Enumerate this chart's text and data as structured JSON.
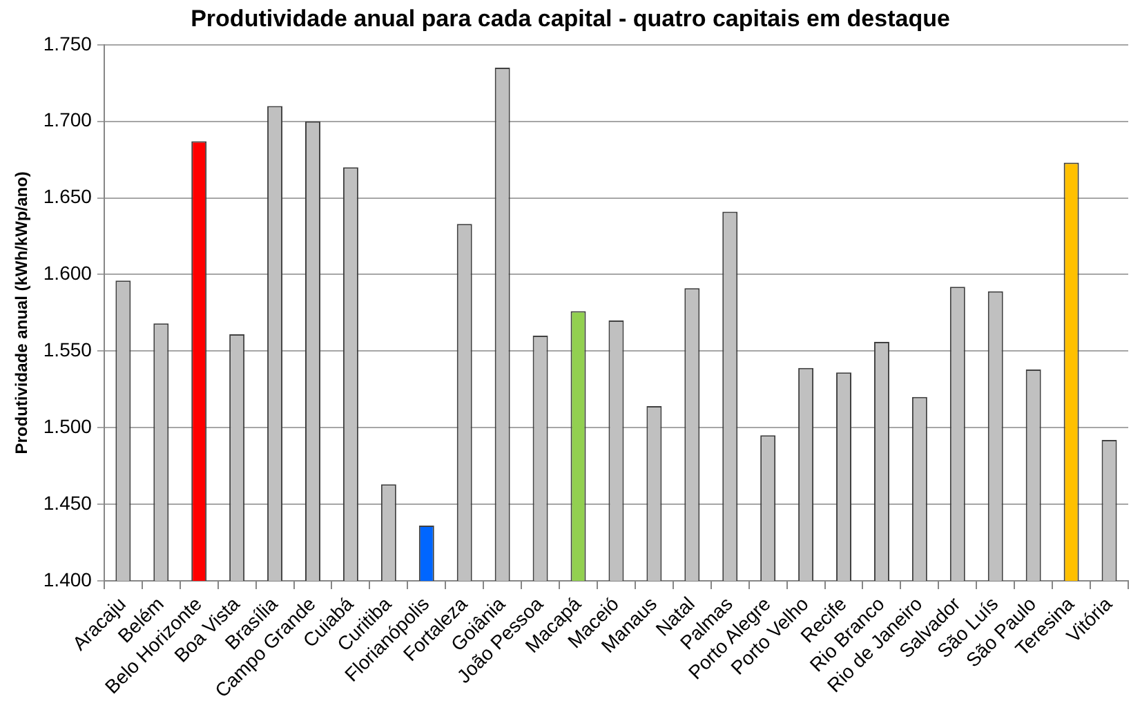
{
  "chart_data": {
    "type": "bar",
    "title": "Produtividade anual para cada capital - quatro capitais em destaque",
    "ylabel": "Produtividade anual (kWh/kWp/ano)",
    "categories": [
      "Aracaju",
      "Belém",
      "Belo Horizonte",
      "Boa Vista",
      "Brasília",
      "Campo Grande",
      "Cuiabá",
      "Curitiba",
      "Florianópolis",
      "Fortaleza",
      "Goiânia",
      "João Pessoa",
      "Macapá",
      "Maceió",
      "Manaus",
      "Natal",
      "Palmas",
      "Porto Alegre",
      "Porto Velho",
      "Recife",
      "Rio Branco",
      "Rio de Janeiro",
      "Salvador",
      "São Luís",
      "São Paulo",
      "Teresina",
      "Vitória"
    ],
    "values": [
      1596,
      1568,
      1687,
      1561,
      1710,
      1700,
      1670,
      1463,
      1436,
      1633,
      1735,
      1560,
      1576,
      1570,
      1514,
      1591,
      1641,
      1495,
      1539,
      1536,
      1556,
      1520,
      1592,
      1589,
      1538,
      1673,
      1492
    ],
    "colors": [
      "#c0c0c0",
      "#c0c0c0",
      "#ff0000",
      "#c0c0c0",
      "#c0c0c0",
      "#c0c0c0",
      "#c0c0c0",
      "#c0c0c0",
      "#0066ff",
      "#c0c0c0",
      "#c0c0c0",
      "#c0c0c0",
      "#92d050",
      "#c0c0c0",
      "#c0c0c0",
      "#c0c0c0",
      "#c0c0c0",
      "#c0c0c0",
      "#c0c0c0",
      "#c0c0c0",
      "#c0c0c0",
      "#c0c0c0",
      "#c0c0c0",
      "#c0c0c0",
      "#c0c0c0",
      "#ffc000",
      "#c0c0c0"
    ],
    "ylim": [
      1400,
      1750
    ],
    "yticks": [
      {
        "value": 1400,
        "label": "1.400"
      },
      {
        "value": 1450,
        "label": "1.450"
      },
      {
        "value": 1500,
        "label": "1.500"
      },
      {
        "value": 1550,
        "label": "1.550"
      },
      {
        "value": 1600,
        "label": "1.600"
      },
      {
        "value": 1650,
        "label": "1.650"
      },
      {
        "value": 1700,
        "label": "1.700"
      },
      {
        "value": 1750,
        "label": "1.750"
      }
    ],
    "grid": "y"
  }
}
